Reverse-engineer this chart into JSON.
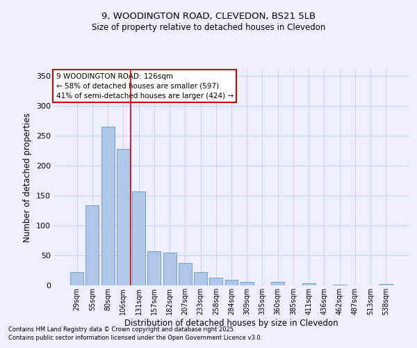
{
  "title_line1": "9, WOODINGTON ROAD, CLEVEDON, BS21 5LB",
  "title_line2": "Size of property relative to detached houses in Clevedon",
  "xlabel": "Distribution of detached houses by size in Clevedon",
  "ylabel": "Number of detached properties",
  "categories": [
    "29sqm",
    "55sqm",
    "80sqm",
    "106sqm",
    "131sqm",
    "157sqm",
    "182sqm",
    "207sqm",
    "233sqm",
    "258sqm",
    "284sqm",
    "309sqm",
    "335sqm",
    "360sqm",
    "385sqm",
    "411sqm",
    "436sqm",
    "462sqm",
    "487sqm",
    "513sqm",
    "538sqm"
  ],
  "values": [
    22,
    133,
    265,
    228,
    157,
    57,
    55,
    37,
    22,
    13,
    9,
    6,
    0,
    6,
    0,
    4,
    0,
    1,
    0,
    0,
    2
  ],
  "bar_color": "#aec6e8",
  "bar_edge_color": "#6699cc",
  "grid_color": "#ccccff",
  "background_color": "#eeeeff",
  "vline_x": 3.5,
  "vline_color": "#cc0000",
  "annotation_box_text": "9 WOODINGTON ROAD: 126sqm\n← 58% of detached houses are smaller (597)\n41% of semi-detached houses are larger (424) →",
  "annotation_box_color": "#cc0000",
  "ylim": [
    0,
    360
  ],
  "yticks": [
    0,
    50,
    100,
    150,
    200,
    250,
    300,
    350
  ],
  "footer_line1": "Contains HM Land Registry data © Crown copyright and database right 2025.",
  "footer_line2": "Contains public sector information licensed under the Open Government Licence v3.0."
}
